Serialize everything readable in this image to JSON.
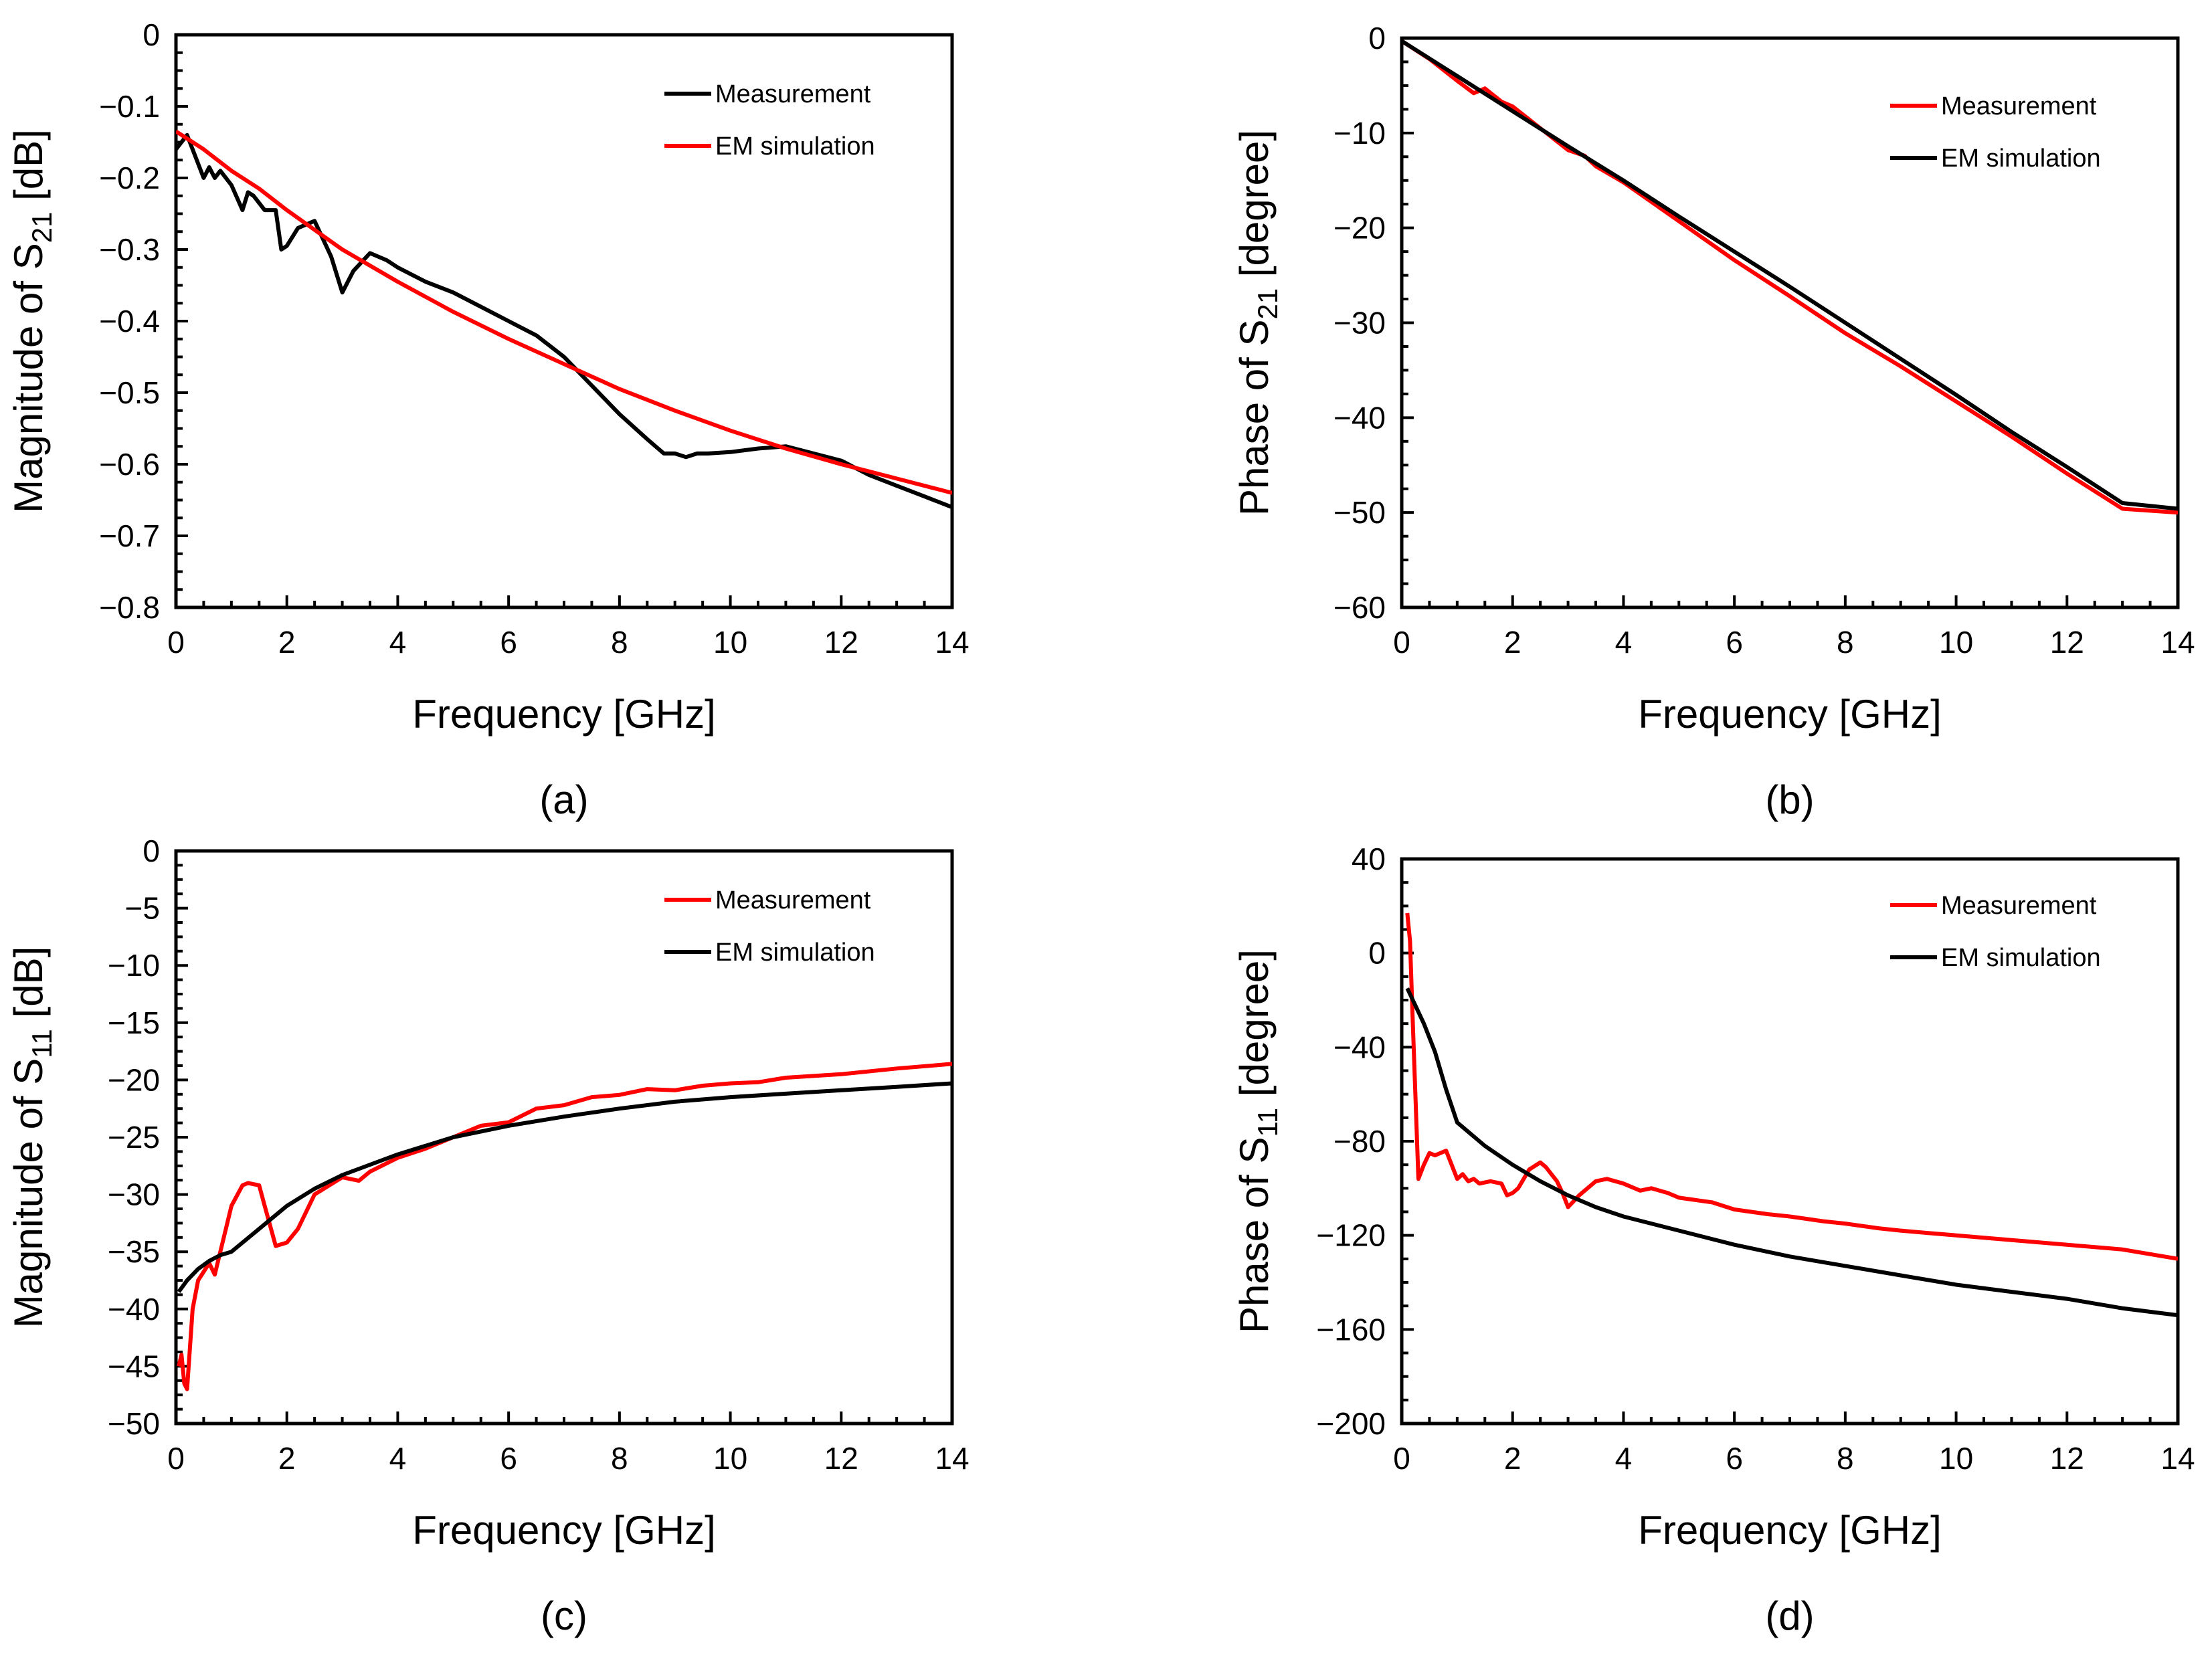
{
  "colors": {
    "measurement": "#ff0000",
    "simulation": "#000000",
    "axis": "#000000",
    "background": "#ffffff"
  },
  "chart_data": [
    {
      "panel": "(a)",
      "type": "line",
      "xlabel": "Frequency [GHz]",
      "ylabel_main": "Magnitude of S",
      "ylabel_sub": "21",
      "ylabel_unit": " [dB]",
      "xlim": [
        0,
        14
      ],
      "ylim": [
        -0.8,
        0
      ],
      "xticks": [
        0,
        2,
        4,
        6,
        8,
        10,
        12,
        14
      ],
      "yticks": [
        0,
        -0.1,
        -0.2,
        -0.3,
        -0.4,
        -0.5,
        -0.6,
        -0.7,
        -0.8
      ],
      "ytick_labels": [
        "0",
        "−0.1",
        "−0.2",
        "−0.3",
        "−0.4",
        "−0.5",
        "−0.6",
        "−0.7",
        "−0.8"
      ],
      "grid": false,
      "legend_position": "top-right",
      "series": [
        {
          "name": "Measurement",
          "color": "#000000",
          "x": [
            0,
            0.2,
            0.4,
            0.5,
            0.6,
            0.7,
            0.8,
            1.0,
            1.2,
            1.3,
            1.4,
            1.6,
            1.8,
            1.9,
            2.0,
            2.2,
            2.5,
            2.8,
            3.0,
            3.2,
            3.5,
            3.8,
            4.0,
            4.5,
            5.0,
            5.5,
            6.0,
            6.5,
            7.0,
            7.5,
            8.0,
            8.5,
            8.8,
            9.0,
            9.2,
            9.4,
            9.6,
            10.0,
            10.5,
            11.0,
            11.5,
            12.0,
            12.5,
            13.0,
            13.5,
            14.0
          ],
          "y": [
            -0.16,
            -0.14,
            -0.18,
            -0.2,
            -0.185,
            -0.2,
            -0.19,
            -0.21,
            -0.245,
            -0.22,
            -0.225,
            -0.245,
            -0.245,
            -0.3,
            -0.295,
            -0.27,
            -0.26,
            -0.31,
            -0.36,
            -0.33,
            -0.305,
            -0.315,
            -0.325,
            -0.345,
            -0.36,
            -0.38,
            -0.4,
            -0.42,
            -0.45,
            -0.49,
            -0.53,
            -0.565,
            -0.585,
            -0.585,
            -0.59,
            -0.585,
            -0.585,
            -0.583,
            -0.578,
            -0.575,
            -0.585,
            -0.595,
            -0.615,
            -0.63,
            -0.645,
            -0.66
          ]
        },
        {
          "name": "EM simulation",
          "color": "#ff0000",
          "x": [
            0,
            0.5,
            1,
            1.5,
            2,
            3,
            4,
            5,
            6,
            7,
            8,
            9,
            10,
            11,
            12,
            13,
            14
          ],
          "y": [
            -0.135,
            -0.16,
            -0.19,
            -0.215,
            -0.245,
            -0.3,
            -0.345,
            -0.387,
            -0.425,
            -0.46,
            -0.495,
            -0.525,
            -0.553,
            -0.578,
            -0.6,
            -0.62,
            -0.64
          ]
        }
      ]
    },
    {
      "panel": "(b)",
      "type": "line",
      "xlabel": "Frequency [GHz]",
      "ylabel_main": "Phase of S",
      "ylabel_sub": "21",
      "ylabel_unit": " [degree]",
      "xlim": [
        0,
        14
      ],
      "ylim": [
        -60,
        0
      ],
      "xticks": [
        0,
        2,
        4,
        6,
        8,
        10,
        12,
        14
      ],
      "yticks": [
        0,
        -10,
        -20,
        -30,
        -40,
        -50,
        -60
      ],
      "ytick_labels": [
        "0",
        "−10",
        "−20",
        "−30",
        "−40",
        "−50",
        "−60"
      ],
      "grid": false,
      "legend_position": "top-right",
      "series": [
        {
          "name": "Measurement",
          "color": "#ff0000",
          "x": [
            0,
            0.5,
            1.0,
            1.3,
            1.5,
            1.8,
            2.0,
            2.5,
            3.0,
            3.3,
            3.5,
            4.0,
            5.0,
            6.0,
            7.0,
            8.0,
            9.0,
            10.0,
            11.0,
            12.0,
            13.0,
            14.0
          ],
          "y": [
            -0.3,
            -2.2,
            -4.5,
            -5.8,
            -5.3,
            -6.7,
            -7.2,
            -9.5,
            -11.8,
            -12.4,
            -13.5,
            -15.2,
            -19.3,
            -23.4,
            -27.2,
            -31.1,
            -34.6,
            -38.3,
            -42.0,
            -45.9,
            -49.6,
            -50.0
          ]
        },
        {
          "name": "EM simulation",
          "color": "#000000",
          "x": [
            0,
            1,
            2,
            3,
            4,
            5,
            6,
            7,
            8,
            9,
            10,
            11,
            12,
            13,
            14
          ],
          "y": [
            -0.3,
            -4.0,
            -7.7,
            -11.4,
            -15.0,
            -18.8,
            -22.5,
            -26.2,
            -30.0,
            -33.8,
            -37.6,
            -41.5,
            -45.2,
            -49.0,
            -49.6
          ]
        }
      ]
    },
    {
      "panel": "(c)",
      "type": "line",
      "xlabel": "Frequency [GHz]",
      "ylabel_main": "Magnitude of S",
      "ylabel_sub": "11",
      "ylabel_unit": " [dB]",
      "xlim": [
        0,
        14
      ],
      "ylim": [
        -50,
        0
      ],
      "xticks": [
        0,
        2,
        4,
        6,
        8,
        10,
        12,
        14
      ],
      "yticks": [
        0,
        -5,
        -10,
        -15,
        -20,
        -25,
        -30,
        -35,
        -40,
        -45,
        -50
      ],
      "ytick_labels": [
        "0",
        "−5",
        "−10",
        "−15",
        "−20",
        "−25",
        "−30",
        "−35",
        "−40",
        "−45",
        "−50"
      ],
      "grid": false,
      "legend_position": "top-right",
      "series": [
        {
          "name": "Measurement",
          "color": "#ff0000",
          "x": [
            0.05,
            0.1,
            0.15,
            0.2,
            0.3,
            0.4,
            0.6,
            0.7,
            0.8,
            0.9,
            1.0,
            1.2,
            1.3,
            1.5,
            1.6,
            1.8,
            2.0,
            2.2,
            2.5,
            3.0,
            3.3,
            3.5,
            4.0,
            4.5,
            5.0,
            5.5,
            6.0,
            6.5,
            7.0,
            7.5,
            8.0,
            8.5,
            9.0,
            9.5,
            10.0,
            10.5,
            11.0,
            12.0,
            13.0,
            14.0
          ],
          "y": [
            -45,
            -44,
            -46.5,
            -47,
            -40,
            -37.5,
            -36,
            -37,
            -35,
            -33,
            -31,
            -29.2,
            -29,
            -29.2,
            -31,
            -34.5,
            -34.2,
            -33,
            -30,
            -28.5,
            -28.8,
            -28,
            -26.8,
            -26,
            -25,
            -24,
            -23.7,
            -22.5,
            -22.2,
            -21.5,
            -21.3,
            -20.8,
            -20.9,
            -20.5,
            -20.3,
            -20.2,
            -19.8,
            -19.5,
            -19,
            -18.6
          ]
        },
        {
          "name": "EM simulation",
          "color": "#000000",
          "x": [
            0.05,
            0.2,
            0.4,
            0.6,
            0.8,
            1.0,
            1.5,
            2.0,
            2.5,
            3.0,
            4.0,
            5.0,
            6.0,
            7.0,
            8.0,
            9.0,
            10.0,
            11.0,
            12.0,
            13.0,
            14.0
          ],
          "y": [
            -38.5,
            -37.5,
            -36.5,
            -35.8,
            -35.3,
            -35,
            -33,
            -31,
            -29.5,
            -28.3,
            -26.5,
            -25,
            -24,
            -23.2,
            -22.5,
            -21.9,
            -21.5,
            -21.2,
            -20.9,
            -20.6,
            -20.3
          ]
        }
      ]
    },
    {
      "panel": "(d)",
      "type": "line",
      "xlabel": "Frequency [GHz]",
      "ylabel_main": "Phase of S",
      "ylabel_sub": "11",
      "ylabel_unit": " [degree]",
      "xlim": [
        0,
        14
      ],
      "ylim": [
        -200,
        40
      ],
      "xticks": [
        0,
        2,
        4,
        6,
        8,
        10,
        12,
        14
      ],
      "yticks": [
        40,
        0,
        -40,
        -80,
        -120,
        -160,
        -200
      ],
      "ytick_labels": [
        "40",
        "0",
        "−40",
        "−80",
        "−120",
        "−160",
        "−200"
      ],
      "grid": false,
      "legend_position": "top-right",
      "series": [
        {
          "name": "Measurement",
          "color": "#ff0000",
          "x": [
            0.1,
            0.15,
            0.2,
            0.3,
            0.4,
            0.5,
            0.6,
            0.8,
            1.0,
            1.1,
            1.2,
            1.3,
            1.4,
            1.6,
            1.8,
            1.9,
            2.0,
            2.1,
            2.3,
            2.5,
            2.6,
            2.8,
            2.9,
            3.0,
            3.2,
            3.5,
            3.7,
            4.0,
            4.3,
            4.5,
            4.8,
            5.0,
            5.3,
            5.6,
            6.0,
            6.3,
            6.6,
            7.0,
            7.3,
            7.6,
            8.0,
            8.3,
            8.6,
            9.0,
            9.5,
            10.0,
            10.5,
            11.0,
            11.5,
            12.0,
            12.5,
            13.0,
            13.5,
            14.0
          ],
          "y": [
            17,
            5,
            -30,
            -96,
            -90,
            -85,
            -86,
            -84,
            -96,
            -94,
            -97,
            -96,
            -98,
            -97,
            -98,
            -103,
            -102,
            -100,
            -92,
            -89,
            -91,
            -97,
            -102,
            -108,
            -103,
            -97,
            -96,
            -98,
            -101,
            -100,
            -102,
            -104,
            -105,
            -106,
            -109,
            -110,
            -111,
            -112,
            -113,
            -114,
            -115,
            -116,
            -117,
            -118,
            -119,
            -120,
            -121,
            -122,
            -123,
            -124,
            -125,
            -126,
            -128,
            -130
          ]
        },
        {
          "name": "EM simulation",
          "color": "#000000",
          "x": [
            0.1,
            0.2,
            0.4,
            0.6,
            0.8,
            1.0,
            1.5,
            2.0,
            2.5,
            3.0,
            3.5,
            4.0,
            5.0,
            6.0,
            7.0,
            8.0,
            9.0,
            10.0,
            11.0,
            12.0,
            13.0,
            14.0
          ],
          "y": [
            -15,
            -20,
            -30,
            -42,
            -58,
            -72,
            -82,
            -90,
            -97,
            -103,
            -108,
            -112,
            -118,
            -124,
            -129,
            -133,
            -137,
            -141,
            -144,
            -147,
            -151,
            -154
          ]
        }
      ]
    }
  ]
}
